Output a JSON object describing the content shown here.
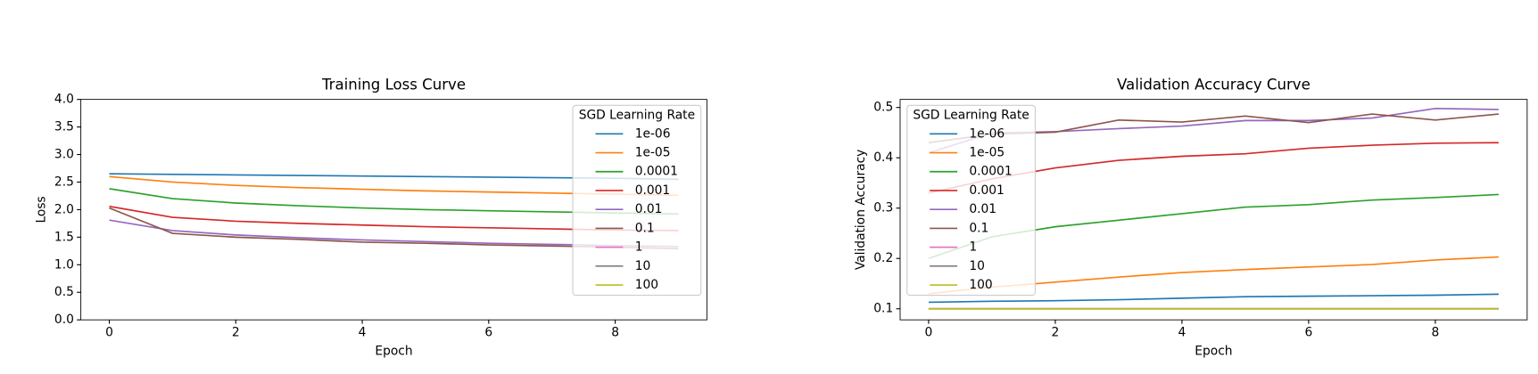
{
  "chart_data": [
    {
      "type": "line",
      "title": "Training Loss Curve",
      "xlabel": "Epoch",
      "ylabel": "Loss",
      "x": [
        0,
        1,
        2,
        3,
        4,
        5,
        6,
        7,
        8,
        9
      ],
      "xlim": [
        -0.45,
        9.45
      ],
      "xticks": [
        0,
        2,
        4,
        6,
        8
      ],
      "ylim": [
        0,
        4
      ],
      "yticks": [
        {
          "value": 0,
          "label": "0.0"
        },
        0.5,
        {
          "value": 1,
          "label": "1.0"
        },
        1.5,
        {
          "value": 2,
          "label": "2.0"
        },
        2.5,
        {
          "value": 3,
          "label": "3.0"
        },
        3.5,
        {
          "value": 4,
          "label": "4.0"
        }
      ],
      "legend_title": "SGD Learning Rate",
      "legend": "upper right",
      "series": [
        {
          "name": "1e-06",
          "color": "#1f77b4",
          "values": [
            2.65,
            2.64,
            2.63,
            2.62,
            2.61,
            2.6,
            2.59,
            2.58,
            2.57,
            2.55
          ]
        },
        {
          "name": "1e-05",
          "color": "#ff7f0e",
          "values": [
            2.6,
            2.5,
            2.44,
            2.4,
            2.37,
            2.34,
            2.32,
            2.3,
            2.28,
            2.26
          ]
        },
        {
          "name": "0.0001",
          "color": "#2ca02c",
          "values": [
            2.38,
            2.2,
            2.12,
            2.07,
            2.03,
            2.0,
            1.98,
            1.96,
            1.94,
            1.92
          ]
        },
        {
          "name": "0.001",
          "color": "#d62728",
          "values": [
            2.06,
            1.86,
            1.79,
            1.75,
            1.72,
            1.69,
            1.67,
            1.65,
            1.63,
            1.62
          ]
        },
        {
          "name": "0.01",
          "color": "#9467bd",
          "values": [
            1.81,
            1.62,
            1.54,
            1.49,
            1.45,
            1.42,
            1.39,
            1.37,
            1.35,
            1.33
          ]
        },
        {
          "name": "0.1",
          "color": "#8c564b",
          "values": [
            2.03,
            1.57,
            1.5,
            1.46,
            1.41,
            1.39,
            1.36,
            1.34,
            1.32,
            1.29
          ]
        },
        {
          "name": "1",
          "color": "#e377c2",
          "values": [
            null,
            null,
            null,
            null,
            null,
            null,
            null,
            null,
            null,
            null
          ]
        },
        {
          "name": "10",
          "color": "#7f7f7f",
          "values": [
            null,
            null,
            null,
            null,
            null,
            null,
            null,
            null,
            null,
            null
          ]
        },
        {
          "name": "100",
          "color": "#bcbd22",
          "values": [
            null,
            null,
            null,
            null,
            null,
            null,
            null,
            null,
            null,
            null
          ]
        }
      ]
    },
    {
      "type": "line",
      "title": "Validation Accuracy Curve",
      "xlabel": "Epoch",
      "ylabel": "Validation Accuracy",
      "x": [
        0,
        1,
        2,
        3,
        4,
        5,
        6,
        7,
        8,
        9
      ],
      "xlim": [
        -0.45,
        9.45
      ],
      "xticks": [
        0,
        2,
        4,
        6,
        8
      ],
      "ylim": [
        0.078,
        0.516
      ],
      "yticks": [
        0.1,
        0.2,
        0.3,
        0.4,
        0.5
      ],
      "legend_title": "SGD Learning Rate",
      "legend": "upper left",
      "series": [
        {
          "name": "1e-06",
          "color": "#1f77b4",
          "values": [
            0.113,
            0.115,
            0.116,
            0.118,
            0.121,
            0.124,
            0.125,
            0.126,
            0.127,
            0.129
          ]
        },
        {
          "name": "1e-05",
          "color": "#ff7f0e",
          "values": [
            0.13,
            0.143,
            0.153,
            0.163,
            0.172,
            0.178,
            0.183,
            0.188,
            0.197,
            0.203
          ]
        },
        {
          "name": "0.0001",
          "color": "#2ca02c",
          "values": [
            0.2,
            0.243,
            0.263,
            0.276,
            0.289,
            0.302,
            0.307,
            0.316,
            0.321,
            0.327
          ]
        },
        {
          "name": "0.001",
          "color": "#d62728",
          "values": [
            0.33,
            0.358,
            0.38,
            0.395,
            0.403,
            0.408,
            0.419,
            0.425,
            0.429,
            0.43
          ]
        },
        {
          "name": "0.01",
          "color": "#9467bd",
          "values": [
            0.41,
            0.449,
            0.452,
            0.458,
            0.463,
            0.474,
            0.474,
            0.479,
            0.498,
            0.496
          ]
        },
        {
          "name": "0.1",
          "color": "#8c564b",
          "values": [
            0.43,
            0.447,
            0.451,
            0.475,
            0.471,
            0.483,
            0.47,
            0.487,
            0.475,
            0.487
          ]
        },
        {
          "name": "1",
          "color": "#e377c2",
          "values": [
            0.1,
            0.1,
            0.1,
            0.1,
            0.1,
            0.1,
            0.1,
            0.1,
            0.1,
            0.1
          ]
        },
        {
          "name": "10",
          "color": "#7f7f7f",
          "values": [
            0.1,
            0.1,
            0.1,
            0.1,
            0.1,
            0.1,
            0.1,
            0.1,
            0.1,
            0.1
          ]
        },
        {
          "name": "100",
          "color": "#bcbd22",
          "values": [
            0.1,
            0.1,
            0.1,
            0.1,
            0.1,
            0.1,
            0.1,
            0.1,
            0.1,
            0.1
          ]
        }
      ]
    }
  ]
}
